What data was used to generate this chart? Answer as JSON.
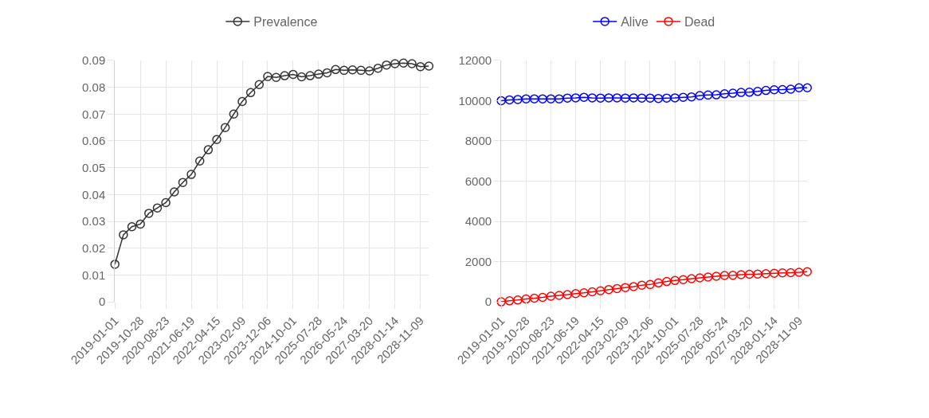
{
  "chart_data": [
    {
      "type": "line",
      "categories": [
        "2019-01-01",
        null,
        null,
        "2019-10-28",
        null,
        null,
        "2020-08-23",
        null,
        null,
        "2021-06-19",
        null,
        null,
        "2022-04-15",
        null,
        null,
        "2023-02-09",
        null,
        null,
        "2023-12-06",
        null,
        null,
        "2024-10-01",
        null,
        null,
        "2025-07-28",
        null,
        null,
        "2026-05-24",
        null,
        null,
        "2027-03-20",
        null,
        null,
        "2028-01-14",
        null,
        null,
        "2028-11-09",
        null
      ],
      "series": [
        {
          "name": "Prevalence",
          "color": "#333333",
          "values": [
            0.014,
            0.025,
            0.028,
            0.029,
            0.033,
            0.035,
            0.037,
            0.041,
            0.0445,
            0.0475,
            0.0525,
            0.0567,
            0.0605,
            0.065,
            0.07,
            0.0747,
            0.078,
            0.081,
            0.084,
            0.0837,
            0.0843,
            0.0848,
            0.0839,
            0.0843,
            0.0849,
            0.0854,
            0.0866,
            0.0863,
            0.0865,
            0.0863,
            0.0861,
            0.0871,
            0.0883,
            0.0888,
            0.089,
            0.0888,
            0.0877,
            0.0879
          ]
        }
      ],
      "ylim": [
        0,
        0.09
      ],
      "yticks": [
        0,
        0.01,
        0.02,
        0.03,
        0.04,
        0.05,
        0.06,
        0.07,
        0.08,
        0.09
      ],
      "grid": true,
      "legend": "top",
      "marker": "circle",
      "line_style": "solid"
    },
    {
      "type": "line",
      "categories": [
        "2019-01-01",
        null,
        null,
        "2019-10-28",
        null,
        null,
        "2020-08-23",
        null,
        null,
        "2021-06-19",
        null,
        null,
        "2022-04-15",
        null,
        null,
        "2023-02-09",
        null,
        null,
        "2023-12-06",
        null,
        null,
        "2024-10-01",
        null,
        null,
        "2025-07-28",
        null,
        null,
        "2026-05-24",
        null,
        null,
        "2027-03-20",
        null,
        null,
        "2028-01-14",
        null,
        null,
        "2028-11-09",
        null
      ],
      "series": [
        {
          "name": "Alive",
          "color": "#0000ff",
          "values": [
            10000,
            10040,
            10060,
            10090,
            10090,
            10090,
            10090,
            10090,
            10130,
            10140,
            10170,
            10140,
            10130,
            10140,
            10140,
            10130,
            10140,
            10130,
            10130,
            10110,
            10130,
            10140,
            10170,
            10190,
            10250,
            10280,
            10290,
            10340,
            10370,
            10410,
            10420,
            10460,
            10510,
            10540,
            10550,
            10570,
            10640,
            10640
          ]
        },
        {
          "name": "Dead",
          "color": "#ff0000",
          "values": [
            0,
            50,
            90,
            140,
            180,
            220,
            280,
            320,
            360,
            410,
            450,
            500,
            550,
            610,
            660,
            710,
            760,
            830,
            860,
            940,
            1010,
            1060,
            1100,
            1150,
            1190,
            1230,
            1270,
            1310,
            1320,
            1350,
            1370,
            1380,
            1400,
            1420,
            1440,
            1450,
            1470,
            1500
          ]
        }
      ],
      "ylim": [
        0,
        12000
      ],
      "yticks": [
        0,
        2000,
        4000,
        6000,
        8000,
        10000,
        12000
      ],
      "grid": true,
      "legend": "top",
      "marker": "circle",
      "line_style": "solid"
    }
  ]
}
